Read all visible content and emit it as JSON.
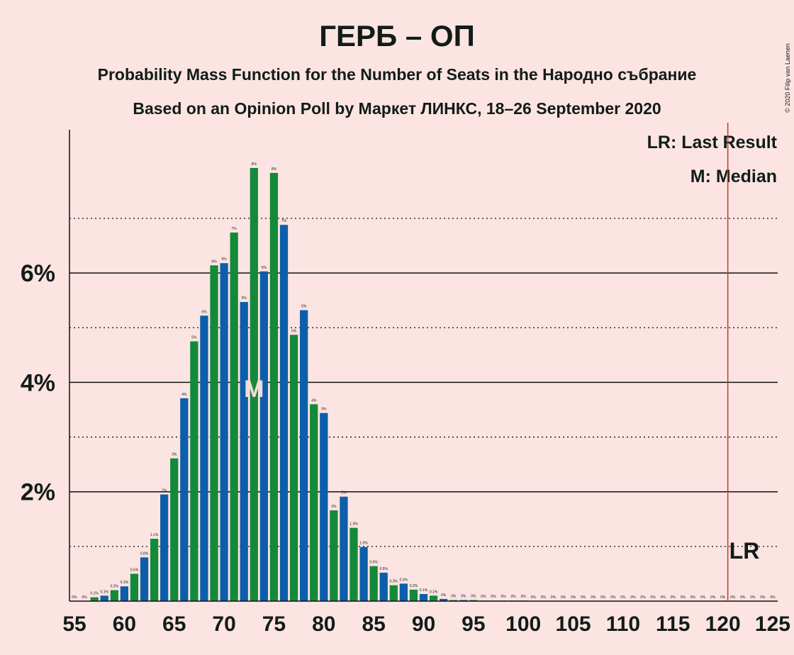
{
  "chart_data": {
    "type": "bar",
    "title": "ГЕРБ – ОП",
    "subtitle": "Probability Mass Function for the Number of Seats in the Народно събрание",
    "subtitle2": "Based on an Opinion Poll by Маркет ЛИНКС, 18–26 September 2020",
    "credit": "© 2020 Filip van Laenen",
    "legend": [
      "LR: Last Result",
      "M: Median"
    ],
    "x": [
      55,
      56,
      57,
      58,
      59,
      60,
      61,
      62,
      63,
      64,
      65,
      66,
      67,
      68,
      69,
      70,
      71,
      72,
      73,
      74,
      75,
      76,
      77,
      78,
      79,
      80,
      81,
      82,
      83,
      84,
      85,
      86,
      87,
      88,
      89,
      90,
      91,
      92,
      93,
      94,
      95,
      96,
      97,
      98,
      99,
      100,
      101,
      102,
      103,
      104,
      105,
      106,
      107,
      108,
      109,
      110,
      111,
      112,
      113,
      114,
      115,
      116,
      117,
      118,
      119,
      120,
      121,
      122,
      123,
      124,
      125
    ],
    "values": [
      0,
      0,
      0.07,
      0.1,
      0.2,
      0.27,
      0.5,
      0.8,
      1.14,
      1.95,
      2.61,
      3.71,
      4.75,
      5.22,
      6.14,
      6.18,
      6.74,
      5.47,
      7.92,
      6.03,
      7.83,
      6.88,
      4.87,
      5.32,
      3.6,
      3.44,
      1.66,
      1.91,
      1.34,
      0.99,
      0.64,
      0.52,
      0.29,
      0.32,
      0.21,
      0.13,
      0.1,
      0.04,
      0.02,
      0.02,
      0.02,
      0.01,
      0.01,
      0.01,
      0.01,
      0.01,
      0,
      0,
      0,
      0,
      0,
      0,
      0,
      0,
      0,
      0,
      0,
      0,
      0,
      0,
      0,
      0,
      0,
      0,
      0,
      0,
      0,
      0,
      0,
      0,
      0
    ],
    "value_labels": [
      "0%",
      "0%",
      "0.1%",
      "0.1%",
      "0.2%",
      "0.3%",
      "0.5%",
      "0.8%",
      "1.1%",
      "2%",
      "3%",
      "4%",
      "5%",
      "5%",
      "6%",
      "6%",
      "7%",
      "5%",
      "8%",
      "6%",
      "8%",
      "7%",
      "5%",
      "5%",
      "4%",
      "3%",
      "2%",
      "2%",
      "1.3%",
      "1.0%",
      "0.6%",
      "0.5%",
      "0.3%",
      "0.3%",
      "0.2%",
      "0.1%",
      "0.1%",
      "0%",
      "0%",
      "0%",
      "0%",
      "0%",
      "0%",
      "0%",
      "0%",
      "0%",
      "0%",
      "0%",
      "0%",
      "0%",
      "0%",
      "0%",
      "0%",
      "0%",
      "0%",
      "0%",
      "0%",
      "0%",
      "0%",
      "0%",
      "0%",
      "0%",
      "0%",
      "0%",
      "0%",
      "0%",
      "0%",
      "0%",
      "0%",
      "0%",
      "0%"
    ],
    "color_cycle": [
      "#13893a",
      "#0c5eaa"
    ],
    "xlim": [
      54.5,
      125.5
    ],
    "xticks": [
      55,
      60,
      65,
      70,
      75,
      80,
      85,
      90,
      95,
      100,
      105,
      110,
      115,
      120,
      125
    ],
    "ylim": [
      0,
      8.62
    ],
    "yticks": [
      {
        "value": 2,
        "label": "2%"
      },
      {
        "value": 4,
        "label": "4%"
      },
      {
        "value": 6,
        "label": "6%"
      }
    ],
    "minor_grid": [
      1,
      3,
      5,
      7
    ],
    "median": 73,
    "median_label": "M",
    "last_result": 120.5,
    "last_result_label": "LR",
    "last_result_color": "#c0392b"
  }
}
